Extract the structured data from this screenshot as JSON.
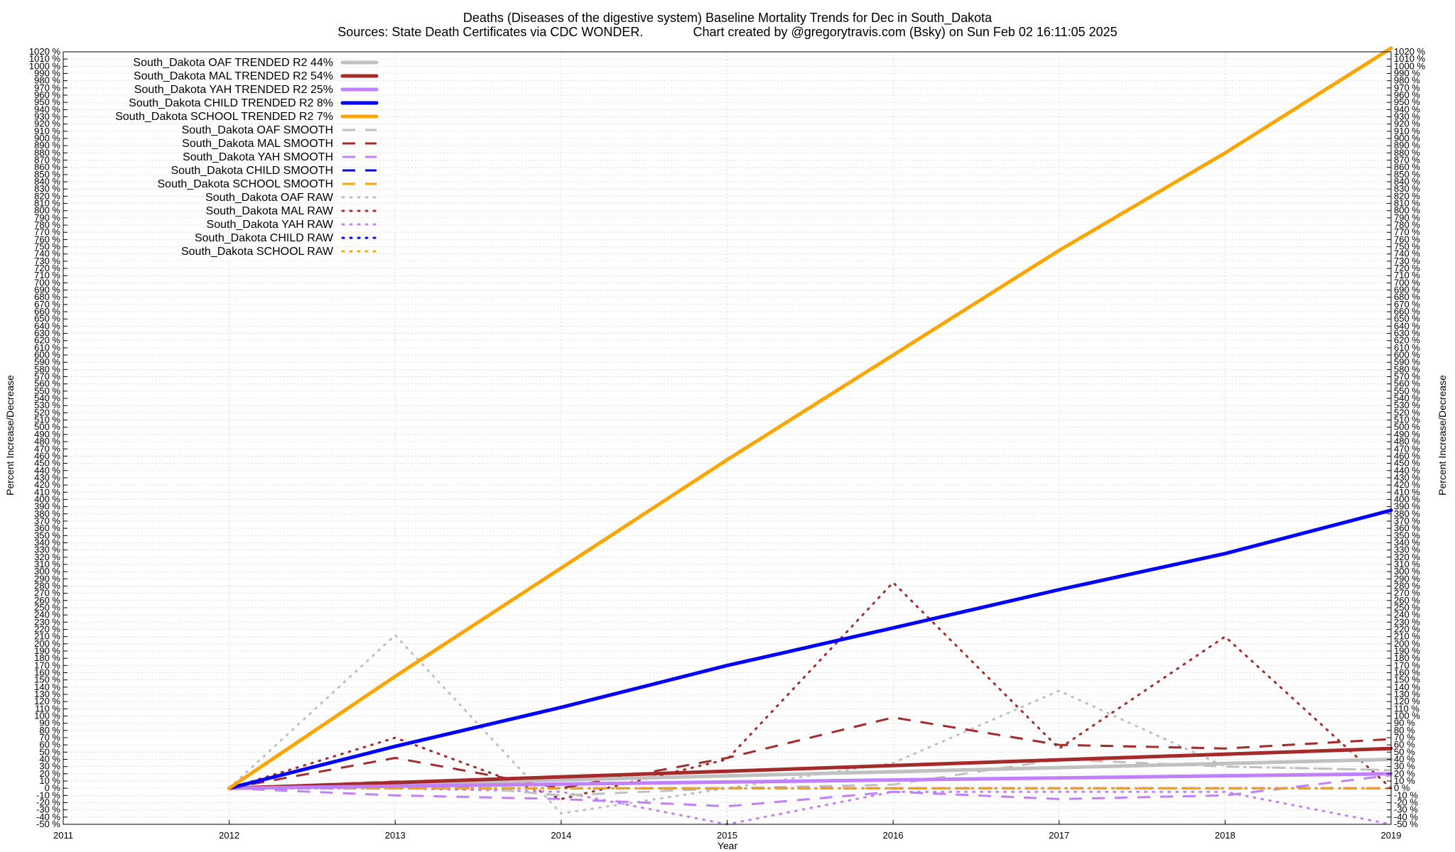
{
  "chart_data": {
    "type": "line",
    "title": "Deaths (Diseases of the digestive system)  Baseline Mortality Trends for Dec in South_Dakota",
    "subtitle": "Sources: State Death Certificates via CDC WONDER.              Chart created by @gregorytravis.com (Bsky) on Sun Feb 02 16:11:05 2025",
    "xlabel": "Year",
    "ylabel": "Percent Increase/Decrease",
    "ylabel_right": "Percent Increase/Decrease",
    "xlim": [
      2011,
      2019
    ],
    "ylim": [
      -50,
      1020
    ],
    "ytick_step": 10,
    "ytick_suffix": " %",
    "xticks": [
      "2011",
      "2012",
      "2013",
      "2014",
      "2015",
      "2016",
      "2017",
      "2018",
      "2019"
    ],
    "grid": true,
    "legend_position": "top-left",
    "series": [
      {
        "name": "South_Dakota OAF TRENDED R2  44%",
        "style": "trend",
        "color": "#c0c0c0",
        "x": [
          2012,
          2019
        ],
        "y": [
          0,
          40
        ]
      },
      {
        "name": "South_Dakota MAL TRENDED R2  54%",
        "style": "trend",
        "color": "#a52a2a",
        "x": [
          2012,
          2019
        ],
        "y": [
          0,
          55
        ]
      },
      {
        "name": "South_Dakota YAH TRENDED R2  25%",
        "style": "trend",
        "color": "#c080ff",
        "x": [
          2012,
          2019
        ],
        "y": [
          0,
          20
        ]
      },
      {
        "name": "South_Dakota CHILD TRENDED R2   8%",
        "style": "trend",
        "color": "#0000ff",
        "x": [
          2012,
          2013,
          2014,
          2015,
          2016,
          2017,
          2018,
          2019
        ],
        "y": [
          0,
          58,
          112,
          170,
          222,
          275,
          325,
          385
        ]
      },
      {
        "name": "South_Dakota SCHOOL TRENDED R2   7%",
        "style": "trend",
        "color": "#ffa500",
        "x": [
          2012,
          2013,
          2014,
          2015,
          2016,
          2017,
          2018,
          2019
        ],
        "y": [
          0,
          155,
          305,
          455,
          600,
          745,
          880,
          1025
        ]
      },
      {
        "name": "South_Dakota OAF SMOOTH",
        "style": "smooth",
        "color": "#c0c0c0",
        "x": [
          2012,
          2013,
          2014,
          2015,
          2016,
          2017,
          2018,
          2019
        ],
        "y": [
          0,
          10,
          -10,
          0,
          5,
          40,
          30,
          25
        ]
      },
      {
        "name": "South_Dakota MAL SMOOTH",
        "style": "smooth",
        "color": "#a52a2a",
        "x": [
          2012,
          2013,
          2014,
          2015,
          2016,
          2017,
          2018,
          2019
        ],
        "y": [
          0,
          42,
          0,
          42,
          98,
          60,
          55,
          68
        ]
      },
      {
        "name": "South_Dakota YAH SMOOTH",
        "style": "smooth",
        "color": "#c080ff",
        "x": [
          2012,
          2013,
          2014,
          2015,
          2016,
          2017,
          2018,
          2019
        ],
        "y": [
          0,
          -10,
          -15,
          -25,
          -5,
          -15,
          -10,
          18
        ]
      },
      {
        "name": "South_Dakota CHILD SMOOTH",
        "style": "smooth",
        "color": "#0000ff",
        "x": [
          2012,
          2013,
          2014,
          2015,
          2016,
          2017,
          2018,
          2019
        ],
        "y": [
          0,
          0,
          0,
          0,
          0,
          0,
          0,
          0
        ]
      },
      {
        "name": "South_Dakota SCHOOL SMOOTH",
        "style": "smooth",
        "color": "#ffa500",
        "x": [
          2012,
          2013,
          2014,
          2015,
          2016,
          2017,
          2018,
          2019
        ],
        "y": [
          0,
          0,
          0,
          0,
          0,
          0,
          0,
          0
        ]
      },
      {
        "name": "South_Dakota OAF RAW",
        "style": "raw",
        "color": "#c0c0c0",
        "x": [
          2012,
          2013,
          2014,
          2015,
          2016,
          2017,
          2018,
          2019
        ],
        "y": [
          0,
          212,
          -35,
          0,
          35,
          135,
          30,
          25
        ]
      },
      {
        "name": "South_Dakota MAL RAW",
        "style": "raw",
        "color": "#a52a2a",
        "x": [
          2012,
          2013,
          2014,
          2015,
          2016,
          2017,
          2018,
          2019
        ],
        "y": [
          0,
          70,
          -15,
          40,
          285,
          55,
          210,
          0
        ]
      },
      {
        "name": "South_Dakota YAH RAW",
        "style": "raw",
        "color": "#c080ff",
        "x": [
          2012,
          2013,
          2014,
          2015,
          2016,
          2017,
          2018,
          2019
        ],
        "y": [
          0,
          0,
          -5,
          -50,
          -5,
          -5,
          -5,
          -50
        ]
      },
      {
        "name": "South_Dakota CHILD RAW",
        "style": "raw",
        "color": "#0000ff",
        "x": [
          2012,
          2013,
          2014,
          2015,
          2016,
          2017,
          2018,
          2019
        ],
        "y": [
          0,
          0,
          0,
          0,
          0,
          0,
          0,
          0
        ]
      },
      {
        "name": "South_Dakota SCHOOL RAW",
        "style": "raw",
        "color": "#ffa500",
        "x": [
          2012,
          2013,
          2014,
          2015,
          2016,
          2017,
          2018,
          2019
        ],
        "y": [
          0,
          0,
          0,
          0,
          0,
          0,
          0,
          0
        ]
      }
    ]
  }
}
